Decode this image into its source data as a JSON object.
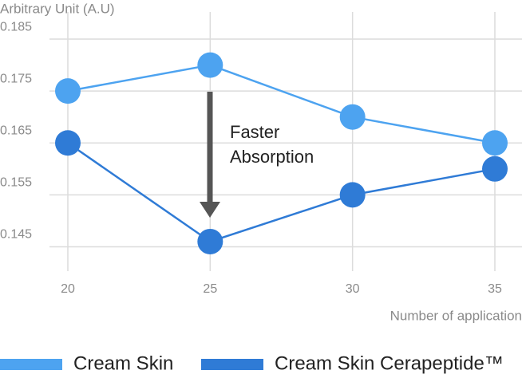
{
  "chart_data": {
    "type": "line",
    "y_label": "Arbitrary Unit (A.U)",
    "x_label": "Number of application",
    "annotation": "Faster Absorption",
    "x": [
      20,
      25,
      30,
      35
    ],
    "series": [
      {
        "name": "Cream Skin",
        "color": "#4da3f0",
        "values": [
          0.175,
          0.18,
          0.17,
          0.165
        ]
      },
      {
        "name": "Cream Skin Cerapeptide™",
        "color": "#2f7bd6",
        "values": [
          0.165,
          0.146,
          0.155,
          0.16
        ]
      }
    ],
    "xlim": [
      20,
      35
    ],
    "xticks": [
      20,
      25,
      30,
      35
    ],
    "ylim": [
      0.14,
      0.19
    ],
    "yticks": [
      0.145,
      0.155,
      0.165,
      0.175,
      0.185
    ],
    "grid": true
  }
}
